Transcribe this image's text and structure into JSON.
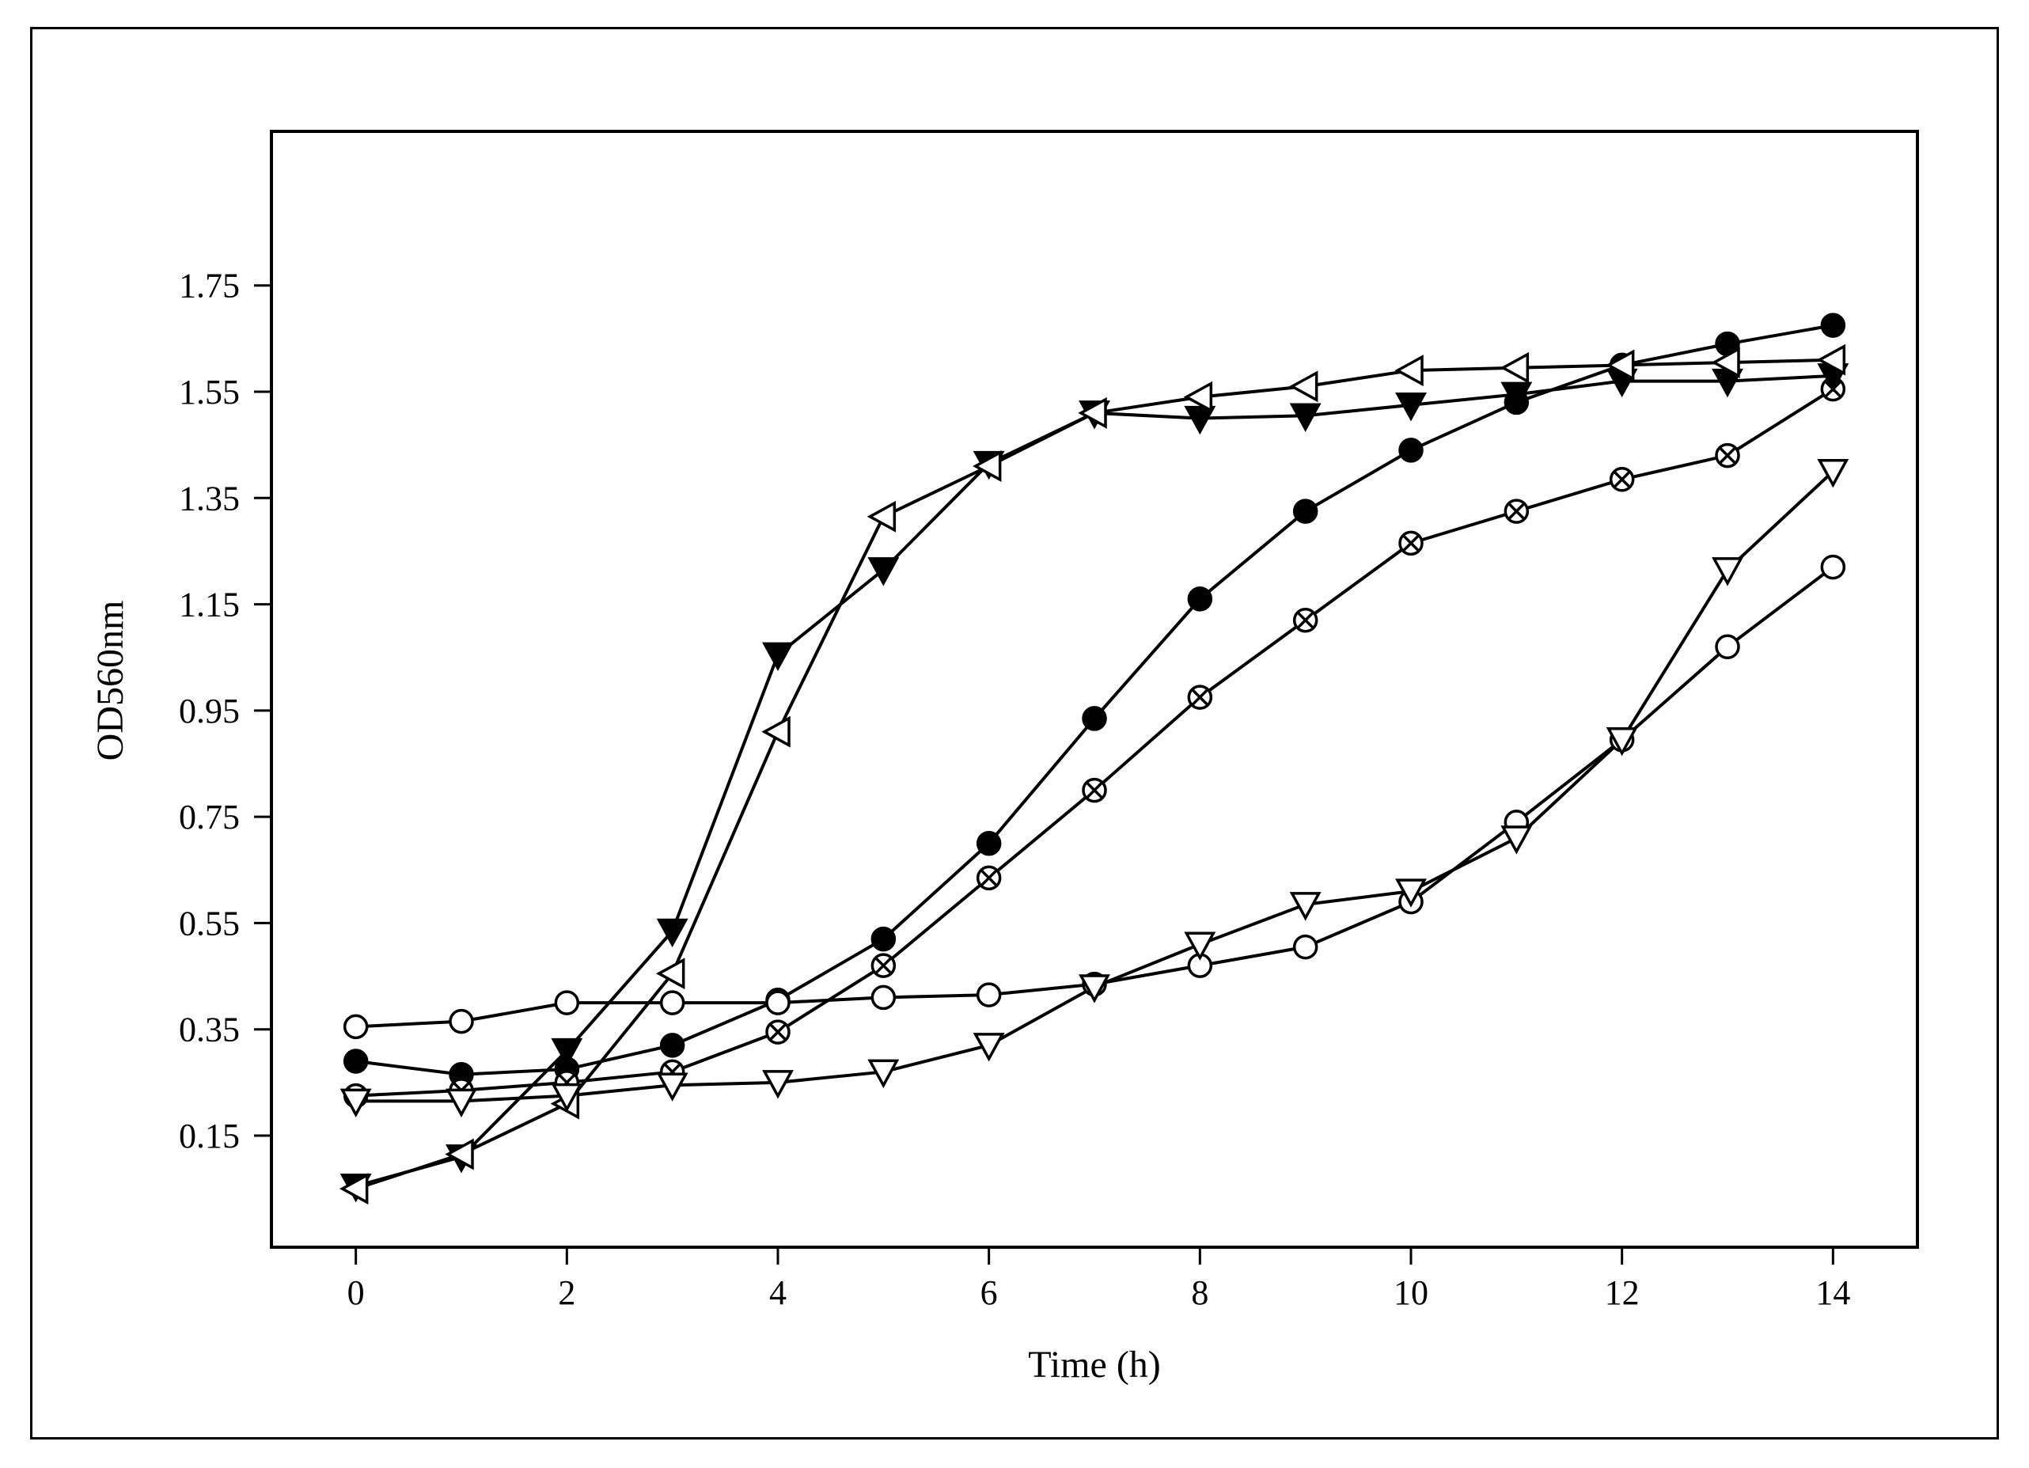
{
  "chart_data": {
    "type": "line",
    "xlabel": "Time (h)",
    "ylabel": "OD560nm",
    "xlim": [
      -0.8,
      14.8
    ],
    "ylim": [
      -0.06,
      2.04
    ],
    "x_ticks": [
      0,
      2,
      4,
      6,
      8,
      10,
      12,
      14
    ],
    "y_ticks": [
      0.15,
      0.35,
      0.55,
      0.75,
      0.95,
      1.15,
      1.35,
      1.55,
      1.75
    ],
    "y_tick_labels": [
      "0.15",
      "0.35",
      "0.55",
      "0.75",
      "0.95",
      "1.15",
      "1.35",
      "1.55",
      "1.75"
    ],
    "x_tick_labels": [
      "0",
      "2",
      "4",
      "6",
      "8",
      "10",
      "12",
      "14"
    ],
    "grid": false,
    "legend": "none",
    "line_color": "#000000",
    "series": [
      {
        "marker": "filled-circle",
        "x": [
          0,
          1,
          2,
          3,
          4,
          5,
          6,
          7,
          8,
          9,
          10,
          11,
          12,
          13,
          14
        ],
        "y": [
          0.29,
          0.265,
          0.275,
          0.32,
          0.405,
          0.52,
          0.7,
          0.935,
          1.16,
          1.325,
          1.44,
          1.53,
          1.6,
          1.64,
          1.675
        ]
      },
      {
        "marker": "crossed-circle",
        "x": [
          0,
          1,
          2,
          3,
          4,
          5,
          6,
          7,
          8,
          9,
          10,
          11,
          12,
          13,
          14
        ],
        "y": [
          0.225,
          0.235,
          0.25,
          0.27,
          0.345,
          0.47,
          0.635,
          0.8,
          0.975,
          1.12,
          1.265,
          1.325,
          1.385,
          1.43,
          1.555
        ]
      },
      {
        "marker": "open-circle",
        "x": [
          0,
          1,
          2,
          3,
          4,
          5,
          6,
          7,
          8,
          9,
          10,
          11,
          12,
          13,
          14
        ],
        "y": [
          0.355,
          0.365,
          0.4,
          0.4,
          0.4,
          0.41,
          0.415,
          0.435,
          0.47,
          0.505,
          0.59,
          0.74,
          0.895,
          1.07,
          1.22
        ]
      },
      {
        "marker": "filled-triangle-down",
        "x": [
          0,
          1,
          2,
          3,
          4,
          5,
          6,
          7,
          8,
          9,
          10,
          11,
          12,
          13,
          14
        ],
        "y": [
          0.055,
          0.11,
          0.31,
          0.535,
          1.055,
          1.215,
          1.415,
          1.51,
          1.5,
          1.505,
          1.525,
          1.545,
          1.57,
          1.57,
          1.58
        ]
      },
      {
        "marker": "open-triangle-left",
        "x": [
          0,
          1,
          2,
          3,
          4,
          5,
          6,
          7,
          8,
          9,
          10,
          11,
          12,
          13,
          14
        ],
        "y": [
          0.05,
          0.115,
          0.21,
          0.455,
          0.91,
          1.315,
          1.41,
          1.51,
          1.54,
          1.56,
          1.59,
          1.595,
          1.6,
          1.605,
          1.61
        ]
      },
      {
        "marker": "open-triangle-down",
        "x": [
          0,
          1,
          2,
          3,
          4,
          5,
          6,
          7,
          8,
          9,
          10,
          11,
          12,
          13,
          14
        ],
        "y": [
          0.215,
          0.215,
          0.225,
          0.245,
          0.25,
          0.27,
          0.32,
          0.43,
          0.51,
          0.585,
          0.61,
          0.71,
          0.895,
          1.215,
          1.4
        ]
      }
    ]
  }
}
